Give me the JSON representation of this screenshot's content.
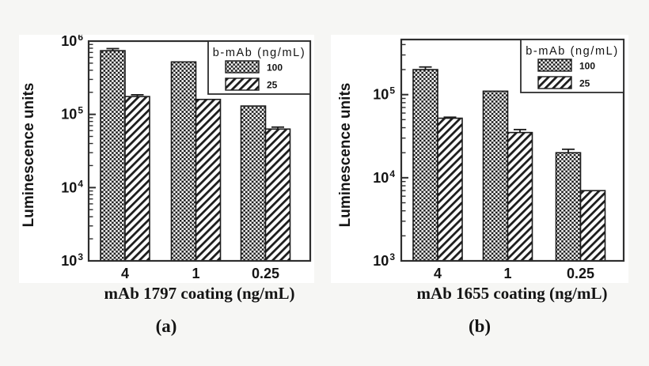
{
  "page": {
    "background": "#f6f6f4",
    "panel_background": "#ffffff",
    "ink": "#1c1c1c",
    "frame_color": "#2e2e2e"
  },
  "shared": {
    "y_axis_label": "Luminescence units",
    "legend_title": "b-mAb (ng/mL)",
    "legend_items": [
      {
        "label": "100",
        "pattern": "crosshatch"
      },
      {
        "label": "25",
        "pattern": "diagonal"
      }
    ]
  },
  "chart_data": [
    {
      "type": "bar",
      "id": "a",
      "caption": "(a)",
      "xlabel": "mAb 1797 coating (ng/mL)",
      "ylabel": "Luminescence units",
      "yscale": "log",
      "ylim": [
        1000,
        1000000
      ],
      "ytick_exponents": [
        3,
        4,
        5,
        6
      ],
      "grid": false,
      "legend_position": "top-right",
      "categories": [
        "4",
        "1",
        "0.25"
      ],
      "series": [
        {
          "name": "100",
          "pattern": "crosshatch",
          "values": [
            740000,
            520000,
            130000
          ],
          "errors": [
            50000,
            0,
            0
          ]
        },
        {
          "name": "25",
          "pattern": "diagonal",
          "values": [
            175000,
            160000,
            63000
          ],
          "errors": [
            10000,
            0,
            4000
          ]
        }
      ]
    },
    {
      "type": "bar",
      "id": "b",
      "caption": "(b)",
      "xlabel": "mAb 1655 coating (ng/mL)",
      "ylabel": "Luminescence units",
      "yscale": "log",
      "ylim": [
        1000,
        460000
      ],
      "ytick_exponents": [
        3,
        4,
        5
      ],
      "grid": false,
      "legend_position": "top-right",
      "categories": [
        "4",
        "1",
        "0.25"
      ],
      "series": [
        {
          "name": "100",
          "pattern": "crosshatch",
          "values": [
            200000,
            110000,
            20000
          ],
          "errors": [
            15000,
            0,
            2000
          ]
        },
        {
          "name": "25",
          "pattern": "diagonal",
          "values": [
            52000,
            35000,
            7000
          ],
          "errors": [
            1500,
            3000,
            0
          ]
        }
      ]
    }
  ]
}
